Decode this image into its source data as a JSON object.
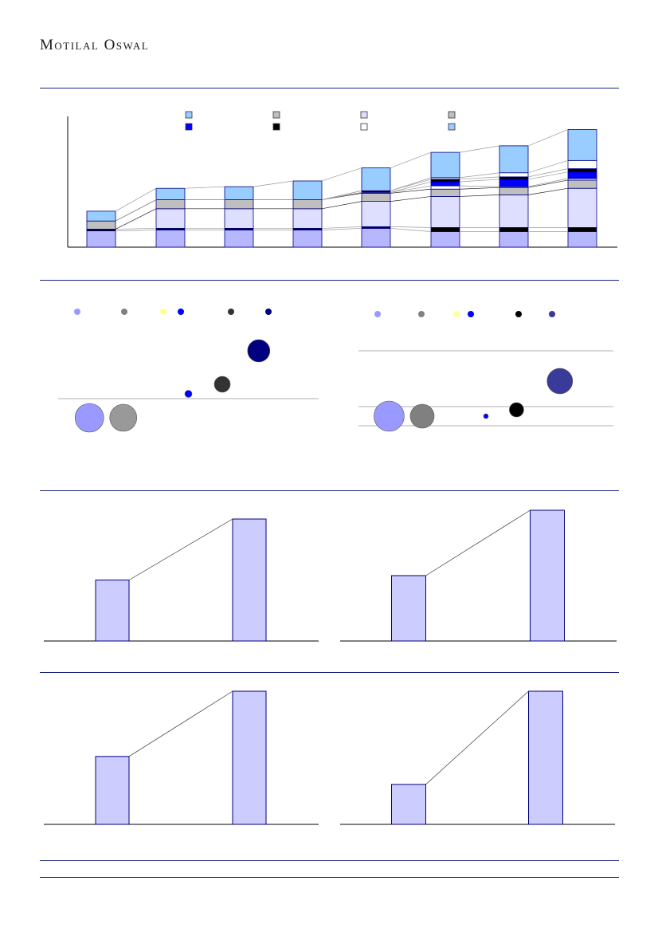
{
  "header": {
    "brand": "Motilal Oswal"
  },
  "colors": {
    "rule": "#1a237e",
    "bar_base": "#b7b7ff",
    "bar_light": "#dedeff",
    "bar_grey": "#bfbfbf",
    "bar_blue": "#0000ff",
    "bar_black": "#000000",
    "bar_white": "#ffffff",
    "bar_top": "#99ccff",
    "small_bar": "#ccccff",
    "outline": "#000080"
  },
  "chart_data": [
    {
      "type": "bar",
      "subtype": "stacked",
      "legend_swatches": [
        "#99ccff",
        "#bfbfbf",
        "#dedeff",
        "#bfbfbf",
        "#0000ff",
        "#000000",
        "#ffffff",
        "#99ccff"
      ],
      "series_colors": [
        "#b7b7ff",
        "#000000",
        "#dedeff",
        "#bfbfbf",
        "#ffffff",
        "#0000ff",
        "#000000",
        "#ffffff",
        "#99ccff"
      ],
      "columns": [
        [
          20,
          2,
          0,
          10,
          0,
          0,
          0,
          0,
          12
        ],
        [
          21,
          2,
          24,
          11,
          0,
          0,
          0,
          0,
          14
        ],
        [
          21,
          2,
          24,
          11,
          0,
          0,
          0,
          0,
          16
        ],
        [
          21,
          2,
          24,
          11,
          0,
          0,
          0,
          0,
          23
        ],
        [
          23,
          2,
          31,
          10,
          1,
          0,
          2,
          0,
          28
        ],
        [
          19,
          5,
          38,
          9,
          4,
          5,
          3,
          2,
          31
        ],
        [
          19,
          5,
          40,
          9,
          1,
          9,
          3,
          5,
          33
        ],
        [
          19,
          5,
          48,
          10,
          2,
          8,
          4,
          10,
          38
        ]
      ],
      "ylim": [
        0,
        160
      ]
    },
    {
      "type": "scatter",
      "subtype": "bubble",
      "legend_colors": [
        "#9999ff",
        "#808080",
        "#ffff99",
        "#0000ff",
        "#333333",
        "#000080"
      ],
      "points": [
        {
          "x": 1.2,
          "y": -0.6,
          "size": 36,
          "color": "#9999ff"
        },
        {
          "x": 2.5,
          "y": -0.6,
          "size": 34,
          "color": "#999999"
        },
        {
          "x": 5.0,
          "y": 0.15,
          "size": 9,
          "color": "#0000ff"
        },
        {
          "x": 6.3,
          "y": 0.45,
          "size": 20,
          "color": "#333333"
        },
        {
          "x": 7.7,
          "y": 1.5,
          "size": 28,
          "color": "#000080"
        }
      ],
      "xlim": [
        0,
        10
      ],
      "ylim": [
        -1.5,
        3
      ]
    },
    {
      "type": "scatter",
      "subtype": "bubble",
      "legend_colors": [
        "#9999ff",
        "#808080",
        "#ffff99",
        "#0000ff",
        "#000000",
        "#3a3a9a"
      ],
      "points": [
        {
          "x": 1.2,
          "y": -0.3,
          "size": 38,
          "color": "#9999ff"
        },
        {
          "x": 2.5,
          "y": -0.3,
          "size": 30,
          "color": "#808080"
        },
        {
          "x": 5.0,
          "y": -0.3,
          "size": 6,
          "color": "#0000ff"
        },
        {
          "x": 6.2,
          "y": -0.1,
          "size": 18,
          "color": "#000000"
        },
        {
          "x": 7.9,
          "y": 0.8,
          "size": 32,
          "color": "#3a3a9a"
        }
      ],
      "xlim": [
        0,
        10
      ],
      "ylim": [
        -1,
        2
      ]
    },
    {
      "type": "bar",
      "values": [
        45,
        90
      ],
      "ylim": [
        0,
        100
      ]
    },
    {
      "type": "bar",
      "values": [
        50,
        100
      ],
      "ylim": [
        0,
        100
      ]
    },
    {
      "type": "bar",
      "values": [
        51,
        100
      ],
      "ylim": [
        0,
        100
      ]
    },
    {
      "type": "bar",
      "values": [
        30,
        100
      ],
      "ylim": [
        0,
        100
      ]
    }
  ]
}
